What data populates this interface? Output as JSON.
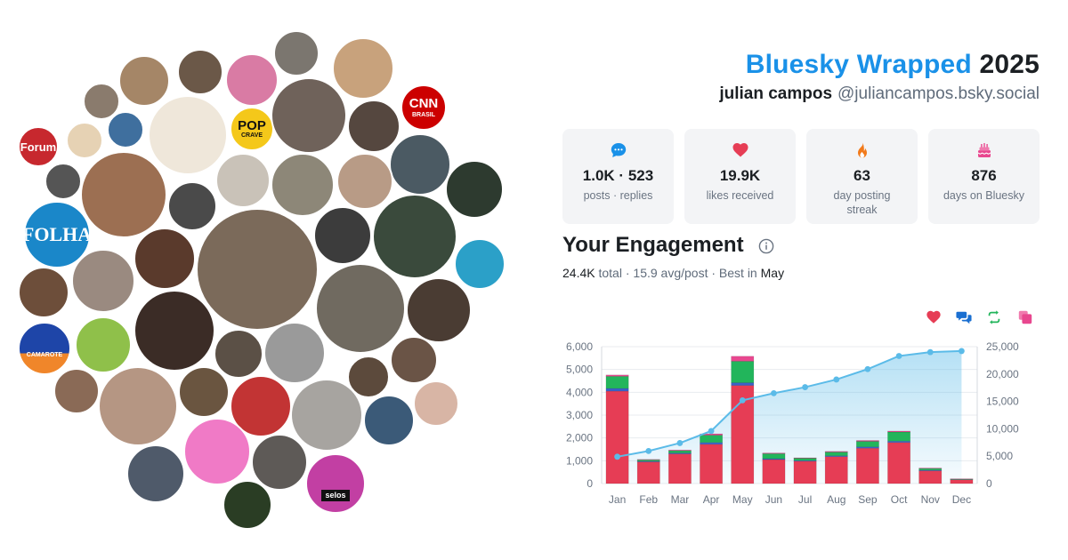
{
  "header": {
    "brand": "Bluesky Wrapped",
    "year": "2025",
    "user_name": "julian campos",
    "user_handle": "@juliancampos.bsky.social"
  },
  "stats": [
    {
      "icon": "speech-bubble-icon",
      "value": "1.0K · 523",
      "label": "posts · replies",
      "color": "#1a91e8"
    },
    {
      "icon": "heart-icon",
      "value": "19.9K",
      "label": "likes received",
      "color": "#e63d55"
    },
    {
      "icon": "flame-icon",
      "value": "63",
      "label": "day posting streak",
      "color": "#f27a1a"
    },
    {
      "icon": "cake-icon",
      "value": "876",
      "label": "days on Bluesky",
      "color": "#e8478f"
    }
  ],
  "engagement": {
    "title": "Your Engagement",
    "total": "24.4K",
    "total_label": "total",
    "avg": "15.9 avg/post",
    "best_label": "Best in",
    "best_month": "May"
  },
  "legend": [
    {
      "icon": "heart-icon",
      "color": "#e63d55"
    },
    {
      "icon": "reply-bubbles-icon",
      "color": "#1a6fd1"
    },
    {
      "icon": "repost-icon",
      "color": "#22b55b"
    },
    {
      "icon": "quote-icon",
      "color": "#e8478f"
    }
  ],
  "avatar_labels": {
    "forum": "Forum",
    "folha": "FOLHA",
    "cnn": "CNN",
    "cnn_sub": "BRASIL",
    "pop": "POP",
    "crave": "CRAVE",
    "camarote": "CAMAROTE",
    "selos": "selos"
  },
  "chart_data": {
    "type": "bar",
    "categories": [
      "Jan",
      "Feb",
      "Mar",
      "Apr",
      "May",
      "Jun",
      "Jul",
      "Aug",
      "Sep",
      "Oct",
      "Nov",
      "Dec"
    ],
    "series": [
      {
        "values": [
          4050,
          950,
          1300,
          1720,
          4300,
          1050,
          980,
          1180,
          1550,
          1800,
          560,
          170
        ],
        "color": "#e63d55"
      },
      {
        "values": [
          120,
          30,
          40,
          80,
          120,
          40,
          30,
          40,
          60,
          60,
          30,
          10
        ],
        "color": "#3b62c9"
      },
      {
        "values": [
          530,
          60,
          100,
          320,
          940,
          220,
          100,
          160,
          240,
          400,
          70,
          20
        ],
        "color": "#22b55b"
      },
      {
        "values": [
          60,
          20,
          30,
          60,
          220,
          30,
          20,
          30,
          40,
          40,
          20,
          10
        ],
        "color": "#e8478f"
      }
    ],
    "cumulative": {
      "values": [
        4900,
        5950,
        7400,
        9600,
        15200,
        16500,
        17600,
        19000,
        20900,
        23300,
        24000,
        24200
      ],
      "color": "#5bbbe8"
    },
    "ylim": [
      0,
      6000
    ],
    "yticks": [
      "0",
      "1,000",
      "2,000",
      "3,000",
      "4,000",
      "5,000",
      "6,000"
    ],
    "y2lim": [
      0,
      25000
    ],
    "y2ticks": [
      "0",
      "5,000",
      "10,000",
      "15,000",
      "20,000",
      "25,000"
    ],
    "grid": true
  }
}
